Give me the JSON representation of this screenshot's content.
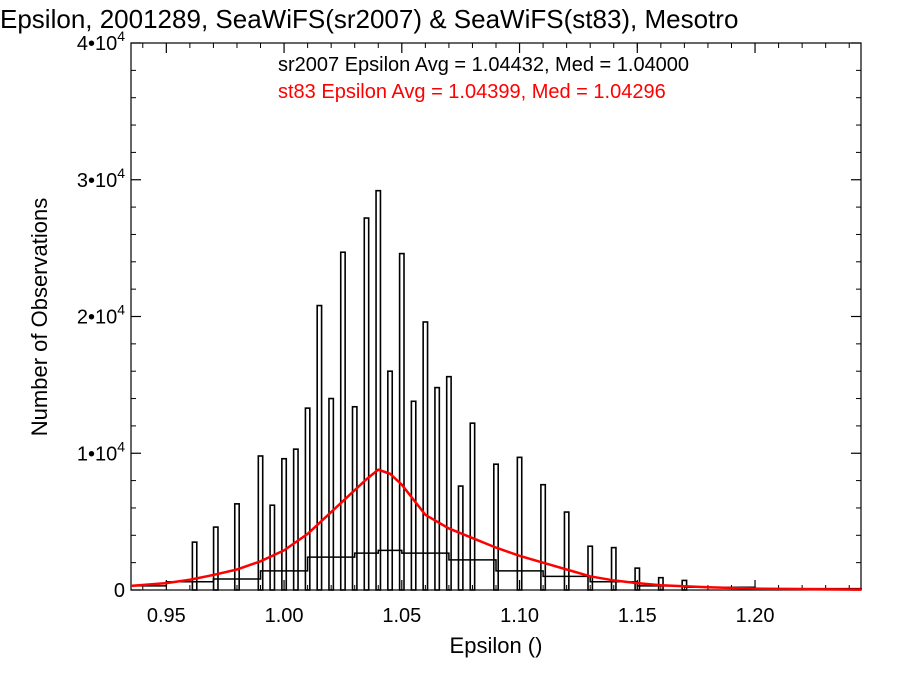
{
  "chart_data": {
    "type": "histogram",
    "title": "Epsilon, 2001289, SeaWiFS(sr2007) & SeaWiFS(st83), Mesotro",
    "xlabel": "Epsilon ()",
    "ylabel": "Number of Observations",
    "xlim": [
      0.935,
      1.245
    ],
    "ylim": [
      0,
      40000
    ],
    "x_ticks": [
      {
        "value": 0.95,
        "label": "0.95"
      },
      {
        "value": 1.0,
        "label": "1.00"
      },
      {
        "value": 1.05,
        "label": "1.05"
      },
      {
        "value": 1.1,
        "label": "1.10"
      },
      {
        "value": 1.15,
        "label": "1.15"
      },
      {
        "value": 1.2,
        "label": "1.20"
      }
    ],
    "y_ticks": [
      {
        "value": 0,
        "mant": "0",
        "exp": ""
      },
      {
        "value": 10000,
        "mant": "1•10",
        "exp": "4"
      },
      {
        "value": 20000,
        "mant": "2•10",
        "exp": "4"
      },
      {
        "value": 30000,
        "mant": "3•10",
        "exp": "4"
      },
      {
        "value": 40000,
        "mant": "4•10",
        "exp": "4"
      }
    ],
    "legend": [
      {
        "text": "sr2007 Epsilon Avg = 1.04432, Med = 1.04000",
        "color": "#000000"
      },
      {
        "text": "st83 Epsilon Avg = 1.04399, Med = 1.04296",
        "color": "#ff0000"
      }
    ],
    "series": [
      {
        "color": "#000000",
        "spikes": [
          [
            0.962,
            3500
          ],
          [
            0.971,
            4600
          ],
          [
            0.98,
            6300
          ],
          [
            0.99,
            9800
          ],
          [
            0.995,
            6200
          ],
          [
            1.0,
            9600
          ],
          [
            1.005,
            10300
          ],
          [
            1.01,
            13300
          ],
          [
            1.015,
            20800
          ],
          [
            1.02,
            14000
          ],
          [
            1.025,
            24700
          ],
          [
            1.03,
            13400
          ],
          [
            1.035,
            27200
          ],
          [
            1.04,
            29200
          ],
          [
            1.045,
            16000
          ],
          [
            1.05,
            24600
          ],
          [
            1.055,
            13800
          ],
          [
            1.06,
            19600
          ],
          [
            1.065,
            14800
          ],
          [
            1.07,
            15600
          ],
          [
            1.075,
            7600
          ],
          [
            1.08,
            12200
          ],
          [
            1.09,
            9200
          ],
          [
            1.1,
            9700
          ],
          [
            1.11,
            7700
          ],
          [
            1.12,
            5700
          ],
          [
            1.13,
            3200
          ],
          [
            1.14,
            3100
          ],
          [
            1.15,
            1600
          ],
          [
            1.16,
            900
          ],
          [
            1.17,
            700
          ]
        ],
        "baseline": [
          [
            0.935,
            300
          ],
          [
            0.95,
            600
          ],
          [
            0.97,
            800
          ],
          [
            0.99,
            1400
          ],
          [
            1.01,
            2400
          ],
          [
            1.03,
            2700
          ],
          [
            1.04,
            2900
          ],
          [
            1.05,
            2700
          ],
          [
            1.07,
            2200
          ],
          [
            1.09,
            1400
          ],
          [
            1.11,
            1000
          ],
          [
            1.13,
            600
          ],
          [
            1.15,
            300
          ],
          [
            1.17,
            200
          ],
          [
            1.2,
            100
          ],
          [
            1.245,
            30
          ]
        ]
      },
      {
        "color": "#ff0000",
        "points": [
          [
            0.935,
            300
          ],
          [
            0.95,
            500
          ],
          [
            0.96,
            750
          ],
          [
            0.97,
            1100
          ],
          [
            0.98,
            1500
          ],
          [
            0.99,
            2100
          ],
          [
            1.0,
            2900
          ],
          [
            1.01,
            4100
          ],
          [
            1.02,
            5700
          ],
          [
            1.03,
            7300
          ],
          [
            1.035,
            8100
          ],
          [
            1.04,
            8800
          ],
          [
            1.045,
            8500
          ],
          [
            1.05,
            7700
          ],
          [
            1.055,
            6600
          ],
          [
            1.06,
            5500
          ],
          [
            1.07,
            4500
          ],
          [
            1.08,
            3800
          ],
          [
            1.09,
            3100
          ],
          [
            1.1,
            2500
          ],
          [
            1.11,
            2000
          ],
          [
            1.12,
            1500
          ],
          [
            1.13,
            1000
          ],
          [
            1.14,
            700
          ],
          [
            1.15,
            500
          ],
          [
            1.16,
            350
          ],
          [
            1.18,
            200
          ],
          [
            1.2,
            100
          ],
          [
            1.22,
            60
          ],
          [
            1.245,
            30
          ]
        ]
      }
    ]
  }
}
